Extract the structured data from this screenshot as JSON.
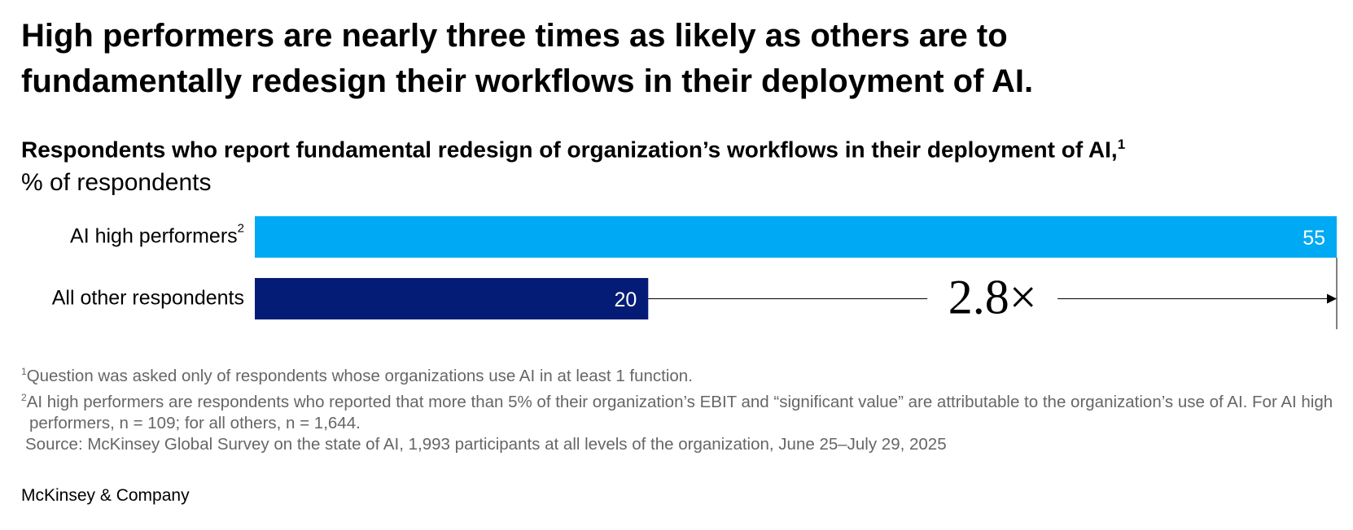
{
  "chart_data": {
    "type": "hbar",
    "title": "High performers are nearly three times as likely as others are to fundamentally redesign their workflows in their deployment of AI.",
    "subtitle": "Respondents who report fundamental redesign of organization’s workflows in their deployment of AI,",
    "subtitle_note": "1",
    "unit_label": "% of respondents",
    "categories": [
      "AI high performers",
      "All other respondents"
    ],
    "category_notes": [
      "2",
      null
    ],
    "values": [
      55,
      20
    ],
    "colors": [
      "#00a9f4",
      "#051c76"
    ],
    "xlim": [
      0,
      55
    ],
    "annotation": "2.8×",
    "footnotes": [
      {
        "marker": "1",
        "text": "Question was asked only of respondents whose organizations use AI in at least 1 function."
      },
      {
        "marker": "2",
        "text": "AI high performers are respondents who reported that more than 5% of their organization’s EBIT and “significant value” are attributable to the organization’s use of AI. For AI high performers, n = 109; for all others, n = 1,644."
      }
    ],
    "source": "Source: McKinsey Global Survey on the state of AI, 1,993 participants at all levels of the organization, June 25–July 29, 2025",
    "brand": "McKinsey & Company"
  }
}
